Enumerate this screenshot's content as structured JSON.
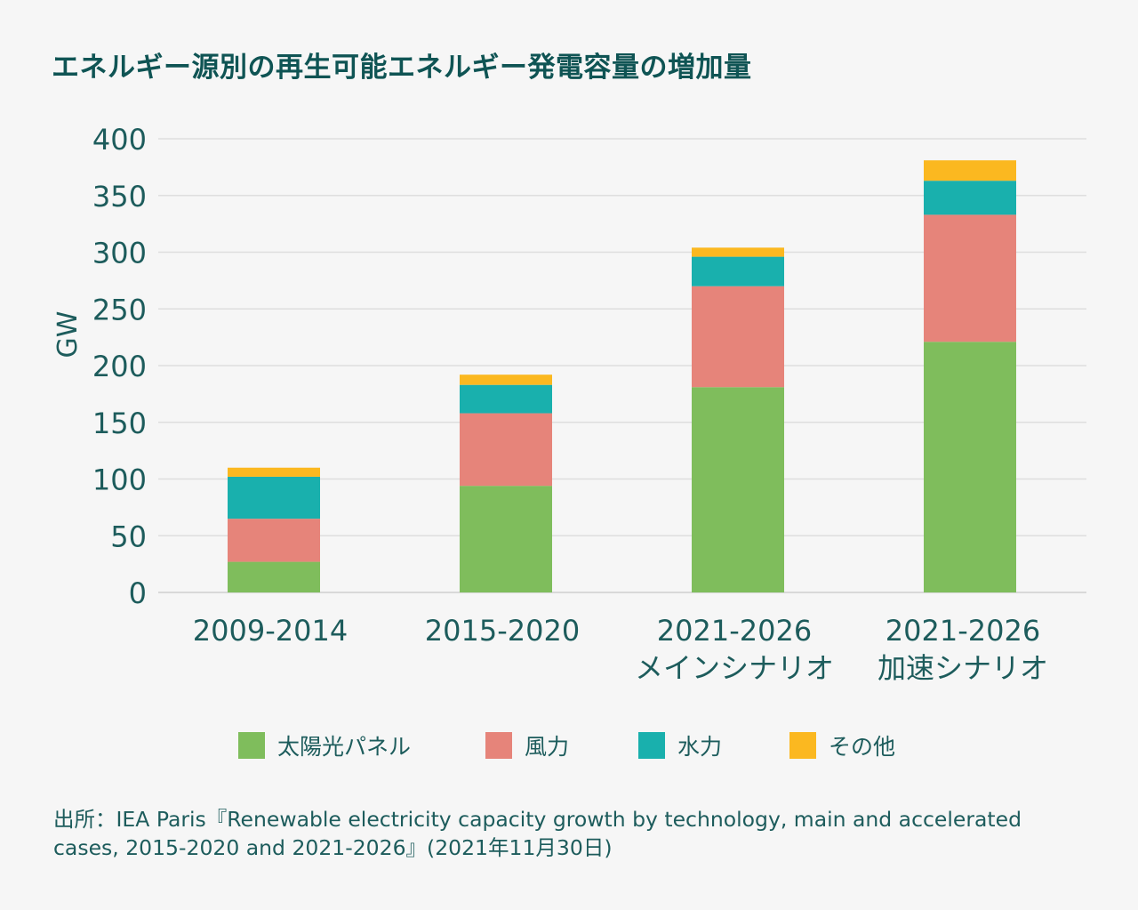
{
  "title": "エネルギー源別の再生可能エネルギー発電容量の増加量",
  "source": "出所：IEA Paris『Renewable electricity capacity growth by technology, main and accelerated cases, 2015-2020 and 2021-2026』(2021年11月30日)",
  "legend": [
    {
      "label": "太陽光パネル",
      "color": "#7fbd5c"
    },
    {
      "label": "風力",
      "color": "#e6847a"
    },
    {
      "label": "水力",
      "color": "#19b0ad"
    },
    {
      "label": "その他",
      "color": "#fbb820"
    }
  ],
  "chart_data": {
    "type": "bar",
    "stacked": true,
    "ylabel": "GW",
    "ylim": [
      0,
      400
    ],
    "yticks": [
      0,
      50,
      100,
      150,
      200,
      250,
      300,
      350,
      400
    ],
    "grid": true,
    "legend_position": "bottom",
    "categories": [
      [
        "2009-2014"
      ],
      [
        "2015-2020"
      ],
      [
        "2021-2026",
        "メインシナリオ"
      ],
      [
        "2021-2026",
        "加速シナリオ"
      ]
    ],
    "series": [
      {
        "name": "太陽光パネル",
        "color": "#7fbd5c",
        "values": [
          27,
          94,
          181,
          221
        ]
      },
      {
        "name": "風力",
        "color": "#e6847a",
        "values": [
          38,
          64,
          89,
          112
        ]
      },
      {
        "name": "水力",
        "color": "#19b0ad",
        "values": [
          37,
          25,
          26,
          30
        ]
      },
      {
        "name": "その他",
        "color": "#fbb820",
        "values": [
          8,
          9,
          8,
          18
        ]
      }
    ]
  }
}
